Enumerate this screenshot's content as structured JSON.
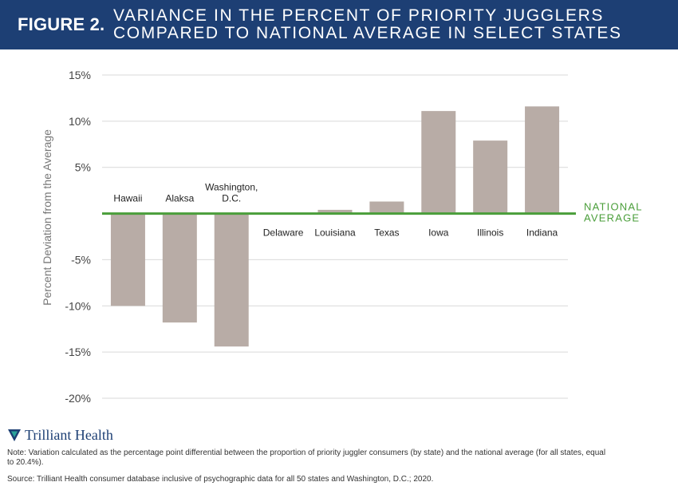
{
  "header": {
    "figure_label": "FIGURE 2.",
    "title": "VARIANCE IN THE PERCENT OF PRIORITY JUGGLERS\nCOMPARED TO NATIONAL AVERAGE IN SELECT STATES"
  },
  "colors": {
    "header_bg": "#1d3f74",
    "bar": "#b8aca6",
    "reference_line": "#4a9e3a",
    "brand": "#1d3f74",
    "logo_accent": "#2aa39a"
  },
  "chart_data": {
    "type": "bar",
    "title": "",
    "ylabel": "Percent Deviation from the Average",
    "xlabel": "",
    "ylim": [
      -20,
      15
    ],
    "yticks": [
      15,
      10,
      5,
      -5,
      -10,
      -15,
      -20
    ],
    "ytick_labels": [
      "15%",
      "10%",
      "5%",
      "-5%",
      "-10%",
      "-15%",
      "-20%"
    ],
    "grid": true,
    "categories": [
      "Hawaii",
      "Alaksa",
      "Washington,\nD.C.",
      "Delaware",
      "Louisiana",
      "Texas",
      "Iowa",
      "Illinois",
      "Indiana"
    ],
    "values": [
      -10.0,
      -11.8,
      -14.4,
      0.0,
      0.4,
      1.3,
      11.1,
      7.9,
      11.6
    ],
    "reference_line": {
      "value": 0,
      "label": "NATIONAL\nAVERAGE"
    }
  },
  "brand": {
    "name": "Trilliant Health",
    "logo_icon": "trillium-logo-icon"
  },
  "note": "Note: Variation calculated as the percentage point differential between the proportion of priority juggler consumers (by state) and the national average (for all states, equal to 20.4%).",
  "source": "Source: Trilliant Health consumer database inclusive of psychographic data for all 50 states and Washington, D.C.; 2020."
}
